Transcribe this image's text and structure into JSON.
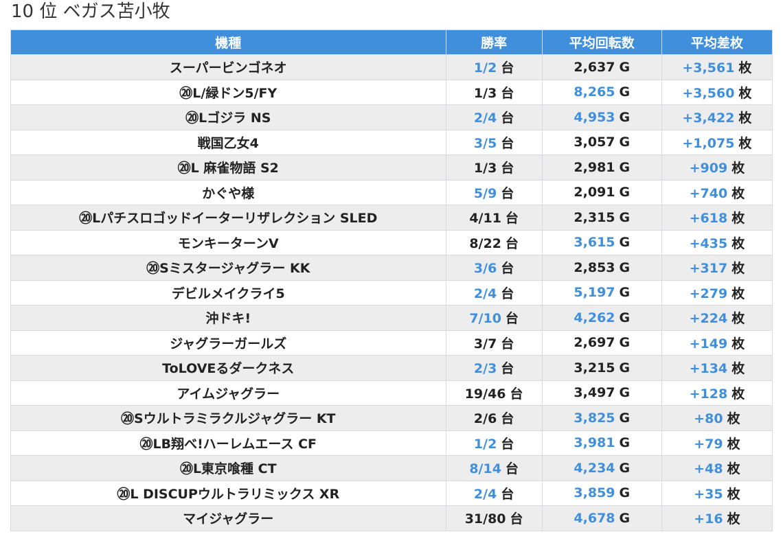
{
  "page": {
    "heading": "10 位 ベガス苫小牧"
  },
  "table": {
    "headers": [
      "機種",
      "勝率",
      "平均回転数",
      "平均差枚"
    ],
    "units": {
      "win": "台",
      "spins": "G",
      "diff": "枚"
    },
    "colors": {
      "header_bg": "#3f8fdc",
      "highlight": "#3f8fdc",
      "stripe": "#ededee"
    },
    "rows": [
      {
        "name": "スーパービンゴネオ",
        "win": "1/2",
        "win_hl": true,
        "spins": "2,637",
        "spins_hl": false,
        "diff": "+3,561"
      },
      {
        "name": "⑳L/緑ドン5/FY",
        "win": "1/3",
        "win_hl": false,
        "spins": "8,265",
        "spins_hl": true,
        "diff": "+3,560"
      },
      {
        "name": "⑳Lゴジラ NS",
        "win": "2/4",
        "win_hl": true,
        "spins": "4,953",
        "spins_hl": true,
        "diff": "+3,422"
      },
      {
        "name": "戦国乙女4",
        "win": "3/5",
        "win_hl": true,
        "spins": "3,057",
        "spins_hl": false,
        "diff": "+1,075"
      },
      {
        "name": "⑳L 麻雀物語 S2",
        "win": "1/3",
        "win_hl": false,
        "spins": "2,981",
        "spins_hl": false,
        "diff": "+909"
      },
      {
        "name": "かぐや様",
        "win": "5/9",
        "win_hl": true,
        "spins": "2,091",
        "spins_hl": false,
        "diff": "+740"
      },
      {
        "name": "⑳Lパチスロゴッドイーターリザレクション SLED",
        "win": "4/11",
        "win_hl": false,
        "spins": "2,315",
        "spins_hl": false,
        "diff": "+618"
      },
      {
        "name": "モンキーターンV",
        "win": "8/22",
        "win_hl": false,
        "spins": "3,615",
        "spins_hl": true,
        "diff": "+435"
      },
      {
        "name": "⑳Sミスタージャグラー KK",
        "win": "3/6",
        "win_hl": true,
        "spins": "2,853",
        "spins_hl": false,
        "diff": "+317"
      },
      {
        "name": "デビルメイクライ5",
        "win": "2/4",
        "win_hl": true,
        "spins": "5,197",
        "spins_hl": true,
        "diff": "+279"
      },
      {
        "name": "沖ドキ!",
        "win": "7/10",
        "win_hl": true,
        "spins": "4,262",
        "spins_hl": true,
        "diff": "+224"
      },
      {
        "name": "ジャグラーガールズ",
        "win": "3/7",
        "win_hl": false,
        "spins": "2,697",
        "spins_hl": false,
        "diff": "+149"
      },
      {
        "name": "ToLOVEるダークネス",
        "win": "2/3",
        "win_hl": true,
        "spins": "3,215",
        "spins_hl": false,
        "diff": "+134"
      },
      {
        "name": "アイムジャグラー",
        "win": "19/46",
        "win_hl": false,
        "spins": "3,497",
        "spins_hl": false,
        "diff": "+128"
      },
      {
        "name": "⑳Sウルトラミラクルジャグラー KT",
        "win": "2/6",
        "win_hl": false,
        "spins": "3,825",
        "spins_hl": true,
        "diff": "+80"
      },
      {
        "name": "⑳LB翔べ!ハーレムエース CF",
        "win": "1/2",
        "win_hl": true,
        "spins": "3,981",
        "spins_hl": true,
        "diff": "+79"
      },
      {
        "name": "⑳L東京喰種 CT",
        "win": "8/14",
        "win_hl": true,
        "spins": "4,234",
        "spins_hl": true,
        "diff": "+48"
      },
      {
        "name": "⑳L DISCUPウルトラリミックス XR",
        "win": "2/4",
        "win_hl": true,
        "spins": "3,859",
        "spins_hl": true,
        "diff": "+35"
      },
      {
        "name": "マイジャグラー",
        "win": "31/80",
        "win_hl": false,
        "spins": "4,678",
        "spins_hl": true,
        "diff": "+16"
      }
    ]
  }
}
